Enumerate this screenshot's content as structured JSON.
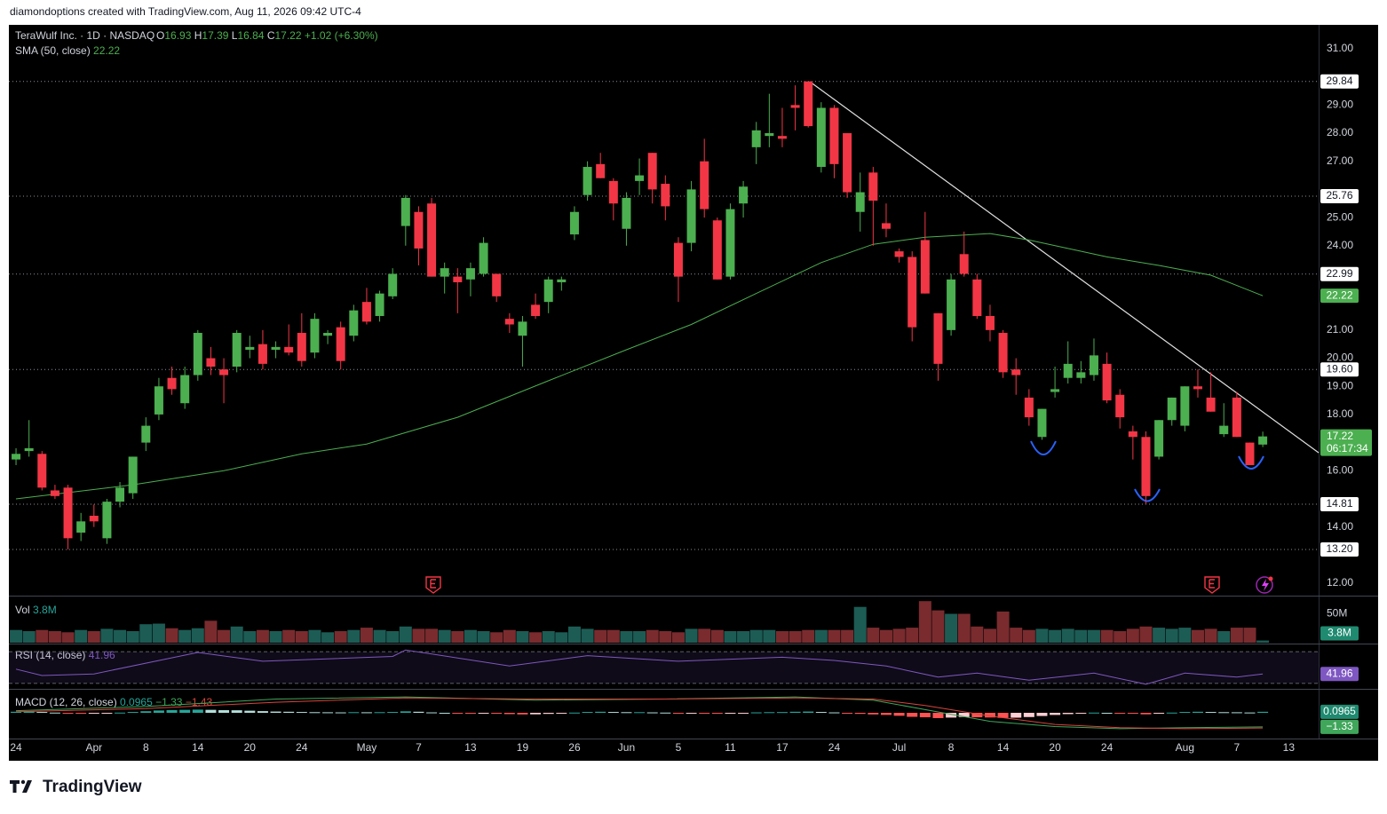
{
  "header": {
    "credit": "diamondoptions created with TradingView.com, Aug 11, 2026 09:42 UTC-4"
  },
  "footer": {
    "logo": "TradingView"
  },
  "chart_data": {
    "type": "candlestick",
    "title": "TeraWulf Inc. · 1D · NASDAQ",
    "ohlc_letters": [
      "O",
      "H",
      "L",
      "C"
    ],
    "change": {
      "value": 1.02,
      "label": "+1.02"
    },
    "change_pct": {
      "value": 6.3,
      "label": "(+6.30%)"
    },
    "countdown": "06:17:34",
    "up_color": "#4caf50",
    "down_color": "#f23645",
    "xlim": [
      -0.55,
      100.3
    ],
    "xticks": [
      {
        "value": 0,
        "label": "24"
      },
      {
        "value": 6,
        "label": "Apr"
      },
      {
        "value": 10,
        "label": "8"
      },
      {
        "value": 14,
        "label": "14"
      },
      {
        "value": 18,
        "label": "20"
      },
      {
        "value": 22,
        "label": "24"
      },
      {
        "value": 27,
        "label": "May"
      },
      {
        "value": 31,
        "label": "7"
      },
      {
        "value": 35,
        "label": "13"
      },
      {
        "value": 39,
        "label": "19"
      },
      {
        "value": 43,
        "label": "26"
      },
      {
        "value": 47,
        "label": "Jun"
      },
      {
        "value": 51,
        "label": "5"
      },
      {
        "value": 55,
        "label": "11"
      },
      {
        "value": 59,
        "label": "17"
      },
      {
        "value": 63,
        "label": "24"
      },
      {
        "value": 68,
        "label": "Jul"
      },
      {
        "value": 72,
        "label": "8"
      },
      {
        "value": 76,
        "label": "14"
      },
      {
        "value": 80,
        "label": "20"
      },
      {
        "value": 84,
        "label": "24"
      },
      {
        "value": 90,
        "label": "Aug"
      },
      {
        "value": 94,
        "label": "7"
      },
      {
        "value": 98,
        "label": "13"
      }
    ],
    "ylim": [
      11.56,
      31.85
    ],
    "yticks": [
      {
        "value": 12,
        "label": "12.00"
      },
      {
        "value": 14,
        "label": "14.00"
      },
      {
        "value": 16,
        "label": "16.00"
      },
      {
        "value": 18,
        "label": "18.00"
      },
      {
        "value": 19,
        "label": "19.00"
      },
      {
        "value": 20,
        "label": "20.00"
      },
      {
        "value": 21,
        "label": "21.00"
      },
      {
        "value": 24,
        "label": "24.00"
      },
      {
        "value": 25,
        "label": "25.00"
      },
      {
        "value": 27,
        "label": "27.00"
      },
      {
        "value": 28,
        "label": "28.00"
      },
      {
        "value": 29,
        "label": "29.00"
      },
      {
        "value": 31,
        "label": "31.00"
      }
    ],
    "grid": false,
    "price_lines": [
      29.84,
      25.76,
      22.99,
      {
        "value": 19.6,
        "label": "19.60"
      },
      14.81,
      {
        "value": 13.2,
        "label": "13.20"
      }
    ],
    "open": [
      16.4,
      16.7,
      16.6,
      15.3,
      15.4,
      13.8,
      14.4,
      13.6,
      14.9,
      15.2,
      17.0,
      18.0,
      19.3,
      18.4,
      19.4,
      20.0,
      19.6,
      19.7,
      20.3,
      20.5,
      20.3,
      20.4,
      20.9,
      20.2,
      20.8,
      21.1,
      20.8,
      22.0,
      21.5,
      22.2,
      24.7,
      25.2,
      25.5,
      22.9,
      22.9,
      22.8,
      23.0,
      23.0,
      21.4,
      20.8,
      21.9,
      22.0,
      22.7,
      24.4,
      25.8,
      26.9,
      26.3,
      24.6,
      26.3,
      27.3,
      26.2,
      24.1,
      24.1,
      27.0,
      24.9,
      22.9,
      25.5,
      27.5,
      27.9,
      27.9,
      29.0,
      29.84,
      26.8,
      28.9,
      28.0,
      25.2,
      26.6,
      24.8,
      23.8,
      23.6,
      24.2,
      21.6,
      21.0,
      23.7,
      22.8,
      21.5,
      20.9,
      19.6,
      18.6,
      17.2,
      18.8,
      19.3,
      19.3,
      19.4,
      19.8,
      18.7,
      17.4,
      17.2,
      16.5,
      17.8,
      17.6,
      19.0,
      18.6,
      17.3,
      18.6,
      17.0,
      16.93
    ],
    "high": [
      16.8,
      17.8,
      16.7,
      15.5,
      15.5,
      14.5,
      14.8,
      15.0,
      15.6,
      16.5,
      17.9,
      19.3,
      19.7,
      19.7,
      21.0,
      20.4,
      20.0,
      21.0,
      20.8,
      21.0,
      20.6,
      21.2,
      21.6,
      21.6,
      21.0,
      21.3,
      21.9,
      22.5,
      22.4,
      23.2,
      25.8,
      25.4,
      25.7,
      23.4,
      23.2,
      23.4,
      24.3,
      23.0,
      21.6,
      21.5,
      22.3,
      22.9,
      22.9,
      25.4,
      27.0,
      27.3,
      26.4,
      25.9,
      27.1,
      27.3,
      26.5,
      24.3,
      26.3,
      27.8,
      25.0,
      25.5,
      26.3,
      28.4,
      29.4,
      28.9,
      29.7,
      29.84,
      29.1,
      29.0,
      28.0,
      26.6,
      26.8,
      25.5,
      23.9,
      23.8,
      25.2,
      21.6,
      23.0,
      24.5,
      23.0,
      21.9,
      21.0,
      20.0,
      18.9,
      18.2,
      19.7,
      20.6,
      19.9,
      20.7,
      20.2,
      18.9,
      17.6,
      17.4,
      17.8,
      18.6,
      19.0,
      19.6,
      19.5,
      18.4,
      18.8,
      17.0,
      17.39
    ],
    "low": [
      16.2,
      16.5,
      15.3,
      15.0,
      13.2,
      13.5,
      14.0,
      13.4,
      14.7,
      15.0,
      16.7,
      17.8,
      18.7,
      18.2,
      19.2,
      19.4,
      18.4,
      19.5,
      20.0,
      19.6,
      20.0,
      20.1,
      19.7,
      20.0,
      20.5,
      19.6,
      20.6,
      21.2,
      21.3,
      22.1,
      24.0,
      23.3,
      22.9,
      22.3,
      21.6,
      22.2,
      22.9,
      22.0,
      20.9,
      19.7,
      21.4,
      21.6,
      22.4,
      24.2,
      25.6,
      26.4,
      24.9,
      24.0,
      25.8,
      25.5,
      24.9,
      22.0,
      23.8,
      25.0,
      22.8,
      22.8,
      25.0,
      26.9,
      27.5,
      27.5,
      28.1,
      28.2,
      26.6,
      26.4,
      25.7,
      24.5,
      24.0,
      24.3,
      23.4,
      20.6,
      22.3,
      19.2,
      20.8,
      22.9,
      21.4,
      20.6,
      19.3,
      18.7,
      17.6,
      17.1,
      18.6,
      19.1,
      19.1,
      19.2,
      18.4,
      17.5,
      16.4,
      14.81,
      16.4,
      17.6,
      17.4,
      18.6,
      18.1,
      17.2,
      17.2,
      16.2,
      16.84
    ],
    "close": [
      16.6,
      16.8,
      15.4,
      15.1,
      13.6,
      14.2,
      14.2,
      14.9,
      15.4,
      16.5,
      17.6,
      19.0,
      18.9,
      19.4,
      20.9,
      19.7,
      19.4,
      20.9,
      20.4,
      19.8,
      20.4,
      20.2,
      19.9,
      21.4,
      20.9,
      19.9,
      21.7,
      21.3,
      22.3,
      23.0,
      25.7,
      23.9,
      22.9,
      23.2,
      22.7,
      23.2,
      24.1,
      22.2,
      21.2,
      21.3,
      21.5,
      22.8,
      22.8,
      25.2,
      26.8,
      26.4,
      25.5,
      25.7,
      26.5,
      26.0,
      25.4,
      22.9,
      26.0,
      25.3,
      22.8,
      25.3,
      26.1,
      28.1,
      28.0,
      27.8,
      28.9,
      28.25,
      28.9,
      26.9,
      25.9,
      25.9,
      25.6,
      24.6,
      23.6,
      21.1,
      22.3,
      19.8,
      22.8,
      23.0,
      21.5,
      21.0,
      19.5,
      19.4,
      17.9,
      18.2,
      18.9,
      19.8,
      19.5,
      20.1,
      18.5,
      17.9,
      17.2,
      15.1,
      17.8,
      18.6,
      19.0,
      18.9,
      18.1,
      17.6,
      17.2,
      16.2,
      17.22
    ],
    "sma": {
      "name": "SMA (50, close)",
      "color": "#4caf50",
      "x": [
        0,
        9,
        16,
        22,
        27,
        34,
        41,
        47,
        52,
        57,
        62,
        66,
        70,
        75,
        78,
        84,
        88,
        92,
        96
      ],
      "values": [
        15.0,
        15.5,
        16.0,
        16.6,
        16.95,
        17.9,
        19.2,
        20.3,
        21.2,
        22.3,
        23.4,
        24.05,
        24.3,
        24.43,
        24.2,
        23.6,
        23.3,
        22.95,
        22.22
      ]
    },
    "volume": {
      "name": "Vol",
      "ylim": [
        0,
        80
      ],
      "yticks": [
        {
          "value": 50,
          "label": "50M"
        }
      ],
      "last_label": "3.8M",
      "values": [
        22,
        20,
        22,
        20,
        18,
        22,
        20,
        24,
        22,
        20,
        32,
        33,
        25,
        22,
        25,
        38,
        22,
        28,
        20,
        22,
        20,
        22,
        20,
        22,
        18,
        20,
        22,
        26,
        22,
        20,
        28,
        24,
        24,
        22,
        20,
        22,
        20,
        18,
        22,
        20,
        18,
        20,
        18,
        28,
        24,
        22,
        22,
        20,
        20,
        22,
        20,
        18,
        24,
        24,
        22,
        20,
        20,
        22,
        22,
        20,
        20,
        22,
        22,
        22,
        22,
        62,
        26,
        22,
        24,
        26,
        72,
        56,
        50,
        50,
        28,
        24,
        54,
        26,
        22,
        24,
        22,
        24,
        22,
        22,
        22,
        20,
        24,
        28,
        26,
        24,
        26,
        22,
        24,
        20,
        26,
        26,
        3.8
      ]
    },
    "rsi": {
      "name": "RSI (14, close)",
      "color": "#7e57c2",
      "ylim": [
        24.3,
        79.1
      ],
      "levels": [
        70,
        30
      ],
      "x": [
        0,
        2,
        6,
        14,
        19,
        29,
        30,
        38,
        44,
        51,
        59,
        63,
        67,
        71,
        74,
        78,
        83,
        87,
        90,
        94,
        96
      ],
      "values": [
        48,
        40,
        42,
        69,
        58,
        64,
        72,
        52,
        65,
        58,
        63,
        59,
        52,
        38,
        43,
        34,
        43,
        29,
        43,
        38,
        41.96
      ]
    },
    "macd": {
      "name": "MACD (12, 26, close)",
      "ylim": [
        -2.43,
        2.18
      ],
      "histogram": [
        0.1,
        0.12,
        0.08,
        0.02,
        -0.05,
        -0.08,
        -0.06,
        -0.02,
        0.02,
        0.08,
        0.15,
        0.22,
        0.26,
        0.28,
        0.3,
        0.28,
        0.25,
        0.24,
        0.2,
        0.16,
        0.12,
        0.1,
        0.08,
        0.06,
        0.05,
        0.04,
        0.06,
        0.05,
        0.06,
        0.08,
        0.14,
        0.1,
        0.04,
        0.0,
        -0.04,
        -0.06,
        -0.05,
        -0.08,
        -0.12,
        -0.15,
        -0.14,
        -0.1,
        -0.08,
        0.02,
        0.08,
        0.1,
        0.08,
        0.06,
        0.06,
        0.04,
        0.02,
        -0.04,
        -0.02,
        -0.02,
        -0.08,
        -0.06,
        -0.03,
        0.04,
        0.06,
        0.07,
        0.1,
        0.12,
        0.08,
        0.04,
        -0.02,
        -0.1,
        -0.15,
        -0.2,
        -0.28,
        -0.38,
        -0.42,
        -0.5,
        -0.45,
        -0.4,
        -0.42,
        -0.44,
        -0.48,
        -0.46,
        -0.4,
        -0.3,
        -0.2,
        -0.12,
        -0.05,
        0.02,
        0.0,
        -0.04,
        -0.08,
        -0.14,
        -0.06,
        0.02,
        0.08,
        0.1,
        0.08,
        0.06,
        0.05,
        0.03,
        0.0965
      ],
      "x": [
        0,
        10,
        20,
        30,
        40,
        50,
        60,
        66,
        70,
        75,
        80,
        85,
        90,
        96
      ],
      "macd_line": [
        0.2,
        0.6,
        1.3,
        1.5,
        1.2,
        1.3,
        1.5,
        1.2,
        0.3,
        -0.8,
        -1.3,
        -1.5,
        -1.4,
        -1.33
      ],
      "signal_line": [
        0.1,
        0.4,
        1.0,
        1.4,
        1.3,
        1.3,
        1.4,
        1.3,
        0.7,
        -0.3,
        -1.1,
        -1.4,
        -1.5,
        -1.43
      ],
      "macd_label": "−1.33",
      "signal_label": "−1.43",
      "macd_color": "#3fa65a",
      "signal_color": "#d9443b"
    }
  }
}
